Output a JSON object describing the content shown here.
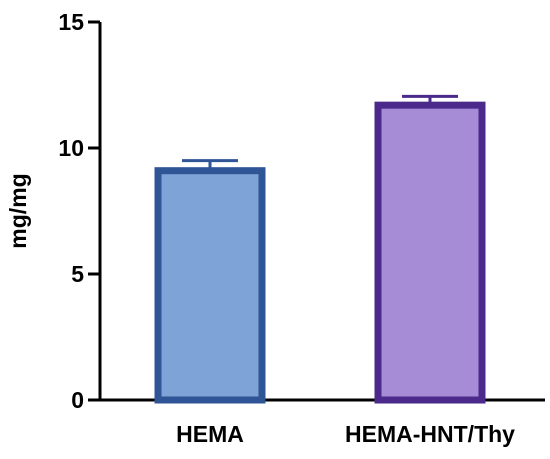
{
  "chart_data": {
    "type": "bar",
    "categories": [
      "HEMA",
      "HEMA-HNT/Thy"
    ],
    "values": [
      9.1,
      11.7
    ],
    "errors": [
      0.4,
      0.35
    ],
    "xlabel": "",
    "ylabel": "mg/mg",
    "ylim": [
      0,
      15
    ],
    "yticks": [
      0,
      5,
      10,
      15
    ],
    "ytick_labels": [
      "0",
      "5",
      "10",
      "15"
    ],
    "grid": false,
    "bar_fill_colors": [
      "#7ea3d6",
      "#a68bd6"
    ],
    "bar_edge_colors": [
      "#2f5597",
      "#4b2a8c"
    ]
  }
}
